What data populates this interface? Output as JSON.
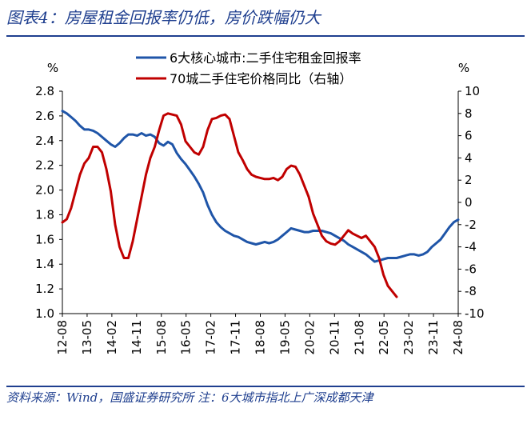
{
  "figure": {
    "title": "图表4：房屋租金回报率仍低，房价跌幅仍大",
    "footer": "资料来源：Wind，国盛证券研究所  注：6大城市指北上广深成都天津"
  },
  "colors": {
    "accent": "#1f3f8f",
    "series_blue": "#1f55a8",
    "series_red": "#c00000"
  },
  "chart_data": {
    "type": "line",
    "title": "",
    "x": [
      "12-08",
      "13-05",
      "14-02",
      "14-11",
      "15-08",
      "16-05",
      "17-02",
      "17-11",
      "18-08",
      "19-05",
      "20-02",
      "20-11",
      "21-08",
      "22-05",
      "23-02",
      "23-11",
      "24-08"
    ],
    "y_left": {
      "label": "%",
      "ticks": [
        "2.8",
        "2.6",
        "2.4",
        "2.2",
        "2.0",
        "1.8",
        "1.6",
        "1.4",
        "1.2",
        "1.0"
      ],
      "range": [
        1.0,
        2.8
      ]
    },
    "y_right": {
      "label": "%",
      "ticks": [
        "10",
        "8",
        "6",
        "4",
        "2",
        "0",
        "-2",
        "-4",
        "-6",
        "-8",
        "-10"
      ],
      "range": [
        -10,
        10
      ]
    },
    "series": [
      {
        "name": "6大核心城市:二手住宅租金回报率",
        "axis": "left",
        "color": "#1f55a8",
        "values": [
          [
            0,
            2.64
          ],
          [
            1,
            2.62
          ],
          [
            2,
            2.59
          ],
          [
            3,
            2.56
          ],
          [
            4,
            2.52
          ],
          [
            5,
            2.49
          ],
          [
            6,
            2.49
          ],
          [
            7,
            2.48
          ],
          [
            8,
            2.46
          ],
          [
            9,
            2.43
          ],
          [
            10,
            2.4
          ],
          [
            11,
            2.37
          ],
          [
            12,
            2.35
          ],
          [
            13,
            2.38
          ],
          [
            14,
            2.42
          ],
          [
            15,
            2.45
          ],
          [
            16,
            2.45
          ],
          [
            17,
            2.44
          ],
          [
            18,
            2.46
          ],
          [
            19,
            2.44
          ],
          [
            20,
            2.45
          ],
          [
            21,
            2.43
          ],
          [
            22,
            2.38
          ],
          [
            23,
            2.36
          ],
          [
            24,
            2.39
          ],
          [
            25,
            2.37
          ],
          [
            26,
            2.3
          ],
          [
            27,
            2.25
          ],
          [
            28,
            2.21
          ],
          [
            29,
            2.16
          ],
          [
            30,
            2.11
          ],
          [
            31,
            2.05
          ],
          [
            32,
            1.98
          ],
          [
            33,
            1.88
          ],
          [
            34,
            1.8
          ],
          [
            35,
            1.74
          ],
          [
            36,
            1.7
          ],
          [
            37,
            1.67
          ],
          [
            38,
            1.65
          ],
          [
            39,
            1.63
          ],
          [
            40,
            1.62
          ],
          [
            41,
            1.6
          ],
          [
            42,
            1.58
          ],
          [
            43,
            1.57
          ],
          [
            44,
            1.56
          ],
          [
            45,
            1.57
          ],
          [
            46,
            1.58
          ],
          [
            47,
            1.57
          ],
          [
            48,
            1.58
          ],
          [
            49,
            1.6
          ],
          [
            50,
            1.63
          ],
          [
            51,
            1.66
          ],
          [
            52,
            1.69
          ],
          [
            53,
            1.68
          ],
          [
            54,
            1.67
          ],
          [
            55,
            1.66
          ],
          [
            56,
            1.66
          ],
          [
            57,
            1.67
          ],
          [
            58,
            1.67
          ],
          [
            59,
            1.67
          ],
          [
            60,
            1.66
          ],
          [
            61,
            1.65
          ],
          [
            62,
            1.63
          ],
          [
            63,
            1.61
          ],
          [
            64,
            1.59
          ],
          [
            65,
            1.56
          ],
          [
            66,
            1.54
          ],
          [
            67,
            1.52
          ],
          [
            68,
            1.5
          ],
          [
            69,
            1.48
          ],
          [
            70,
            1.45
          ],
          [
            71,
            1.42
          ],
          [
            72,
            1.43
          ],
          [
            73,
            1.44
          ],
          [
            74,
            1.45
          ],
          [
            75,
            1.45
          ],
          [
            76,
            1.45
          ],
          [
            77,
            1.46
          ],
          [
            78,
            1.47
          ],
          [
            79,
            1.48
          ],
          [
            80,
            1.48
          ],
          [
            81,
            1.47
          ],
          [
            82,
            1.48
          ],
          [
            83,
            1.5
          ],
          [
            84,
            1.54
          ],
          [
            85,
            1.57
          ],
          [
            86,
            1.6
          ],
          [
            87,
            1.65
          ],
          [
            88,
            1.7
          ],
          [
            89,
            1.74
          ],
          [
            90,
            1.76
          ]
        ]
      },
      {
        "name": "70城二手住宅价格同比（右轴）",
        "axis": "right",
        "color": "#c00000",
        "values": [
          [
            0,
            -1.8
          ],
          [
            1,
            -1.5
          ],
          [
            2,
            -0.5
          ],
          [
            3,
            1.0
          ],
          [
            4,
            2.5
          ],
          [
            5,
            3.5
          ],
          [
            6,
            4.0
          ],
          [
            7,
            5.0
          ],
          [
            8,
            5.0
          ],
          [
            9,
            4.5
          ],
          [
            10,
            3.0
          ],
          [
            11,
            1.0
          ],
          [
            12,
            -2.0
          ],
          [
            13,
            -4.0
          ],
          [
            14,
            -5.0
          ],
          [
            15,
            -5.0
          ],
          [
            16,
            -3.5
          ],
          [
            17,
            -1.5
          ],
          [
            18,
            0.5
          ],
          [
            19,
            2.5
          ],
          [
            20,
            4.0
          ],
          [
            21,
            5.0
          ],
          [
            22,
            6.5
          ],
          [
            23,
            7.8
          ],
          [
            24,
            8.0
          ],
          [
            25,
            7.9
          ],
          [
            26,
            7.8
          ],
          [
            27,
            7.0
          ],
          [
            28,
            5.5
          ],
          [
            29,
            5.0
          ],
          [
            30,
            4.5
          ],
          [
            31,
            4.3
          ],
          [
            32,
            5.0
          ],
          [
            33,
            6.5
          ],
          [
            34,
            7.5
          ],
          [
            35,
            7.6
          ],
          [
            36,
            7.8
          ],
          [
            37,
            7.9
          ],
          [
            38,
            7.5
          ],
          [
            39,
            6.0
          ],
          [
            40,
            4.5
          ],
          [
            41,
            3.8
          ],
          [
            42,
            3.0
          ],
          [
            43,
            2.5
          ],
          [
            44,
            2.3
          ],
          [
            45,
            2.2
          ],
          [
            46,
            2.1
          ],
          [
            47,
            2.1
          ],
          [
            48,
            2.2
          ],
          [
            49,
            2.0
          ],
          [
            50,
            2.3
          ],
          [
            51,
            3.0
          ],
          [
            52,
            3.3
          ],
          [
            53,
            3.2
          ],
          [
            54,
            2.5
          ],
          [
            55,
            1.5
          ],
          [
            56,
            0.5
          ],
          [
            57,
            -1.0
          ],
          [
            58,
            -2.0
          ],
          [
            59,
            -3.0
          ],
          [
            60,
            -3.5
          ],
          [
            61,
            -3.7
          ],
          [
            62,
            -3.8
          ],
          [
            63,
            -3.5
          ],
          [
            64,
            -3.0
          ],
          [
            65,
            -2.5
          ],
          [
            66,
            -2.8
          ],
          [
            67,
            -3.0
          ],
          [
            68,
            -3.2
          ],
          [
            69,
            -3.0
          ],
          [
            70,
            -3.5
          ],
          [
            71,
            -4.0
          ],
          [
            72,
            -5.0
          ],
          [
            73,
            -6.5
          ],
          [
            74,
            -7.5
          ],
          [
            75,
            -8.0
          ],
          [
            76,
            -8.5
          ]
        ]
      }
    ],
    "x_index_max": 90,
    "legend_position": "top"
  }
}
